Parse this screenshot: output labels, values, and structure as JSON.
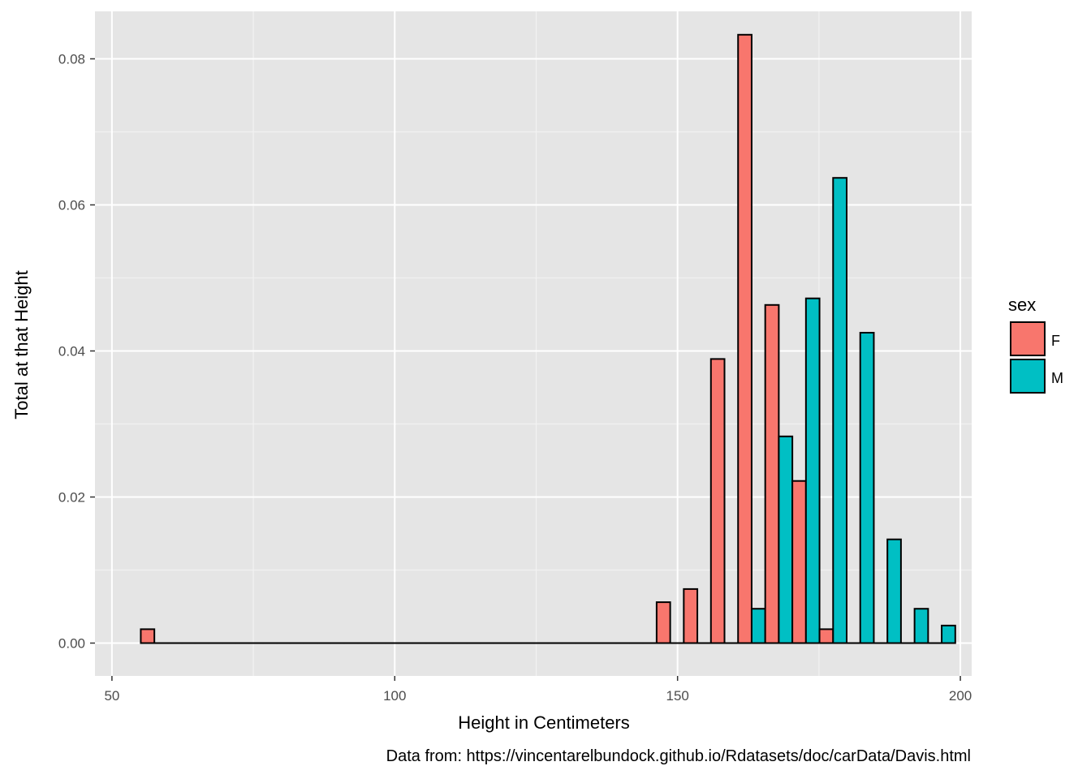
{
  "chart_data": {
    "type": "bar",
    "xlabel": "Height in Centimeters",
    "ylabel": "Total at that Height",
    "caption": "Data from:  https://vincentarelbundock.github.io/Rdatasets/doc/carData/Davis.html",
    "xlim": [
      47,
      202
    ],
    "ylim": [
      -0.0045,
      0.0865
    ],
    "x_ticks": [
      50,
      100,
      150,
      200
    ],
    "y_ticks": [
      0.0,
      0.02,
      0.04,
      0.06,
      0.08
    ],
    "x_tick_labels": [
      "50",
      "100",
      "150",
      "200"
    ],
    "y_tick_labels": [
      "0.00",
      "0.02",
      "0.04",
      "0.06",
      "0.08"
    ],
    "grid": true,
    "legend": {
      "title": "sex",
      "position": "right",
      "entries": [
        {
          "label": "F",
          "color": "#F8766D"
        },
        {
          "label": "M",
          "color": "#00BFC4"
        }
      ]
    },
    "bin_width": 4.8,
    "bins": [
      57.5,
      62.3,
      67.1,
      71.9,
      76.7,
      81.5,
      86.3,
      91.1,
      95.9,
      100.7,
      105.5,
      110.3,
      115.1,
      119.9,
      124.7,
      129.5,
      134.3,
      139.1,
      143.9,
      148.7,
      153.5,
      158.3,
      163.1,
      167.9,
      172.7,
      177.5,
      182.3,
      187.1,
      191.9,
      196.7
    ],
    "series": [
      {
        "name": "F",
        "color": "#F8766D",
        "values": [
          0.0019,
          0,
          0,
          0,
          0,
          0,
          0,
          0,
          0,
          0,
          0,
          0,
          0,
          0,
          0,
          0,
          0,
          0,
          0,
          0.0056,
          0.0074,
          0.0389,
          0.0833,
          0.0463,
          0.0222,
          0.0019,
          0,
          0,
          0,
          0
        ]
      },
      {
        "name": "M",
        "color": "#00BFC4",
        "values": [
          0,
          0,
          0,
          0,
          0,
          0,
          0,
          0,
          0,
          0,
          0,
          0,
          0,
          0,
          0,
          0,
          0,
          0,
          0,
          0,
          0,
          0,
          0.0047,
          0.0283,
          0.0472,
          0.0637,
          0.0425,
          0.0142,
          0.0047,
          0.0024
        ]
      }
    ]
  }
}
